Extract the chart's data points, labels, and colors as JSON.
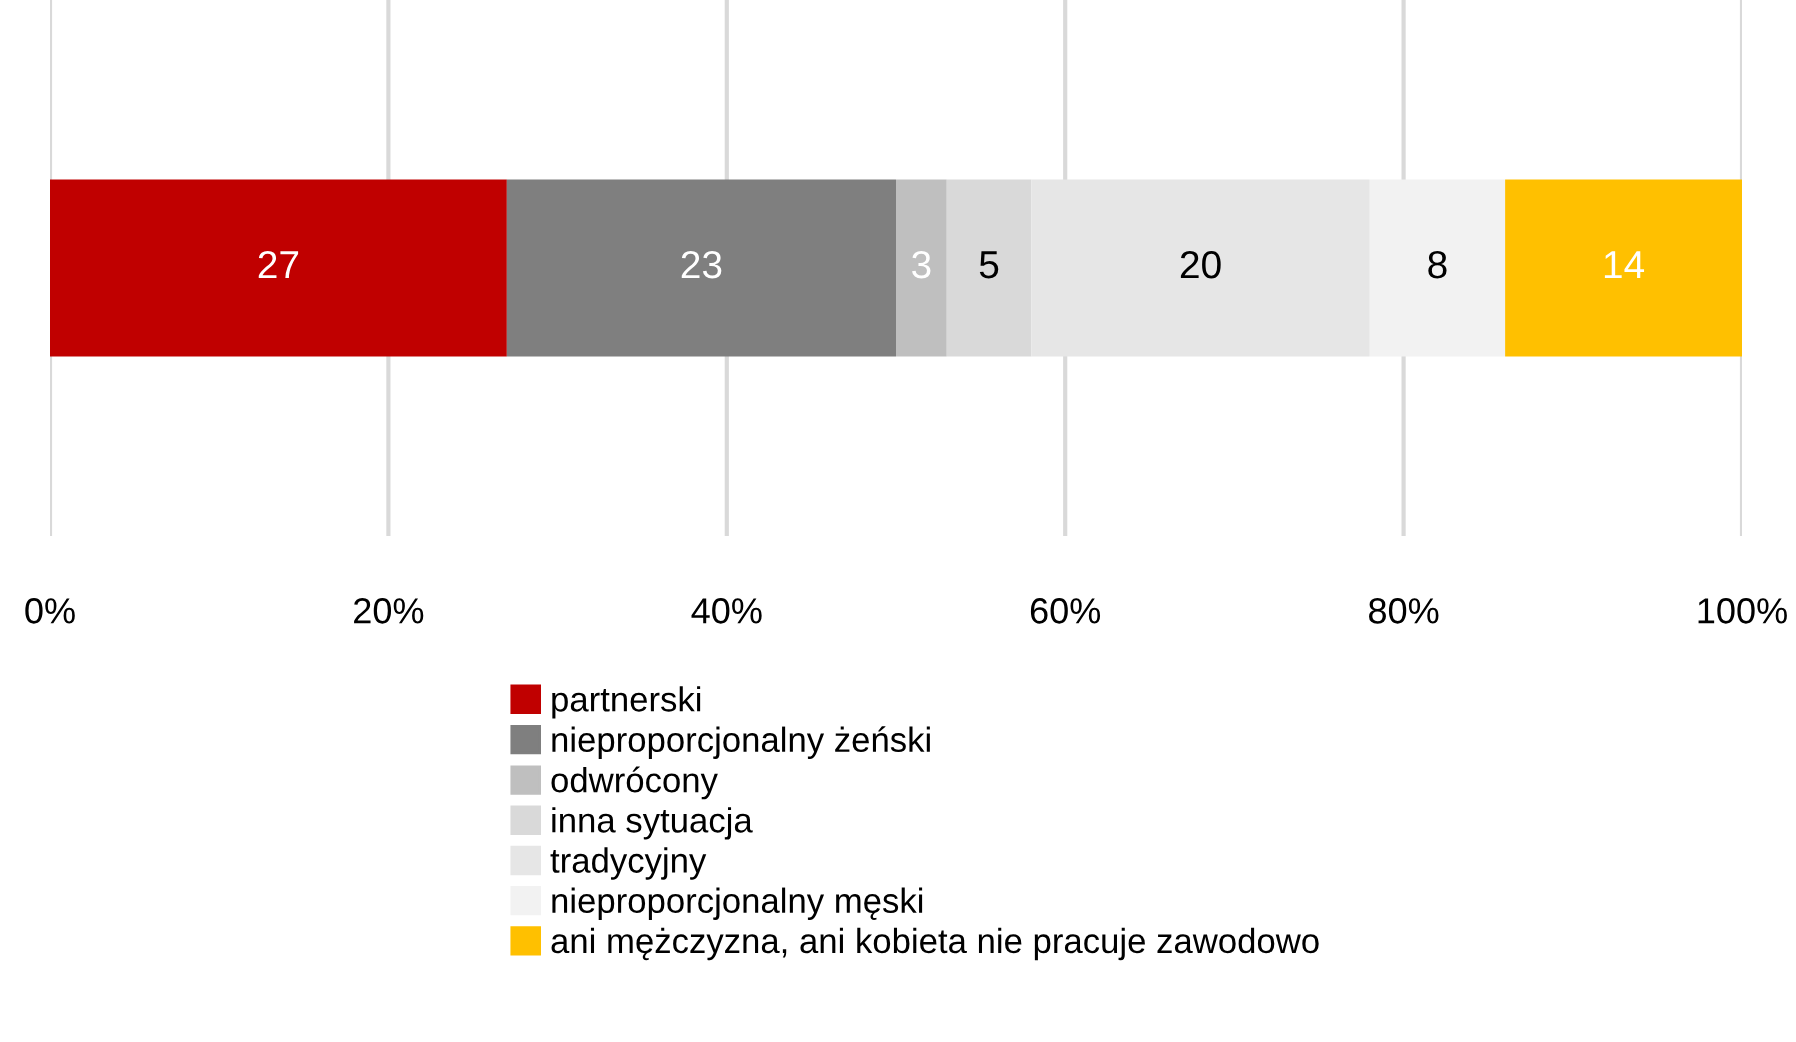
{
  "chart_data": {
    "type": "bar",
    "orientation": "horizontal",
    "stacked": true,
    "categories": [
      null
    ],
    "series": [
      {
        "name": "partnerski",
        "color": "#c00000",
        "values": [
          27
        ]
      },
      {
        "name": "nieproporcjonalny żeński",
        "color": "#7f7f7f",
        "values": [
          23
        ]
      },
      {
        "name": "odwrócony",
        "color": "#bfbfbf",
        "values": [
          3
        ]
      },
      {
        "name": "inna sytuacja",
        "color": "#d9d9d9",
        "values": [
          5
        ]
      },
      {
        "name": "tradycyjny",
        "color": "#e6e6e6",
        "values": [
          20
        ]
      },
      {
        "name": "nieproporcjonalny męski",
        "color": "#f2f2f2",
        "values": [
          8
        ]
      },
      {
        "name": "ani mężczyzna, ani kobieta nie pracuje zawodowo",
        "color": "#ffc000",
        "values": [
          14
        ]
      }
    ],
    "xlim": [
      0,
      100
    ],
    "xticks": [
      {
        "value": 0,
        "label": "0%"
      },
      {
        "value": 20,
        "label": "20%"
      },
      {
        "value": 40,
        "label": "40%"
      },
      {
        "value": 60,
        "label": "60%"
      },
      {
        "value": 80,
        "label": "80%"
      },
      {
        "value": 100,
        "label": "100%"
      }
    ],
    "grid": "x",
    "legend": "bottom",
    "data_labels": true
  }
}
